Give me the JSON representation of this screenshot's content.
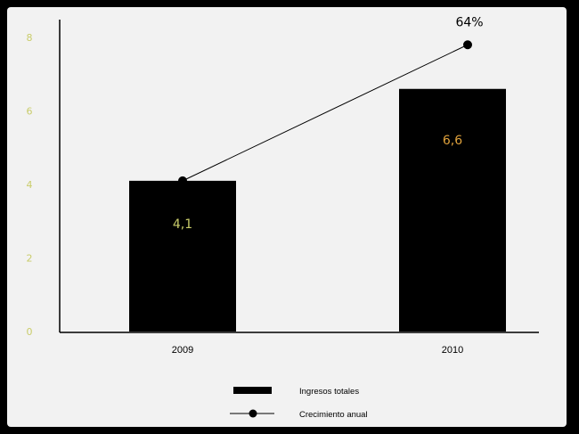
{
  "chart_data": {
    "type": "bar",
    "categories": [
      "2009",
      "2010"
    ],
    "series": [
      {
        "name": "Ingresos totales",
        "values": [
          4.1,
          6.6
        ],
        "labels": [
          "4,1",
          "6,6"
        ]
      },
      {
        "name": "Crecimiento anual",
        "type": "line",
        "values": [
          4.1,
          7.8
        ],
        "labels": [
          "",
          "64%"
        ]
      }
    ],
    "title": "",
    "xlabel": "",
    "ylabel": "",
    "ylim": [
      0,
      9
    ],
    "yticks": [
      0,
      2,
      4,
      6,
      8
    ],
    "grid": false,
    "legend": "bottom",
    "colors": {
      "bar": "#000000",
      "line": "#000000",
      "tick_label": "#c9cc6a",
      "bar_label_2009": "#c9cc6a",
      "bar_label_2010": "#e0a23c",
      "background": "#f2f2f2"
    }
  }
}
